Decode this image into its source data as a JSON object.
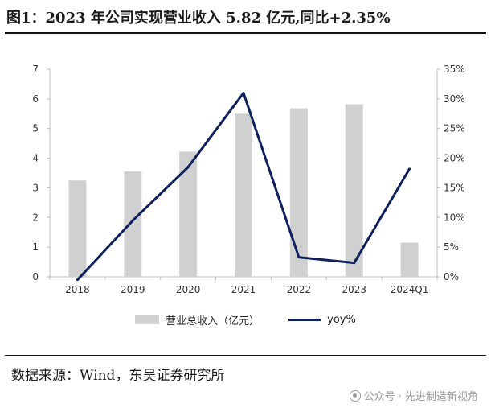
{
  "title": "图1：2023 年公司实现营业收入 5.82 亿元,同比+2.35%",
  "source": "数据来源：Wind，东吴证券研究所",
  "watermark": "公众号 · 先进制造新视角",
  "colors": {
    "bar": "#d0d0d0",
    "line": "#0d1f5c"
  },
  "chart_data": {
    "type": "bar",
    "categories": [
      "2018",
      "2019",
      "2020",
      "2021",
      "2022",
      "2023",
      "2024Q1"
    ],
    "series": [
      {
        "name": "营业总收入（亿元）",
        "type": "bar",
        "axis": "left",
        "values": [
          3.25,
          3.55,
          4.22,
          5.5,
          5.68,
          5.82,
          1.15
        ]
      },
      {
        "name": "yoy%",
        "type": "line",
        "axis": "right",
        "values": [
          -0.5,
          9.5,
          18.5,
          31.0,
          3.3,
          2.35,
          18.2
        ]
      }
    ],
    "ylim": [
      0,
      7
    ],
    "yticks": [
      "0",
      "1",
      "2",
      "3",
      "4",
      "5",
      "6",
      "7"
    ],
    "y2lim": [
      0,
      35
    ],
    "y2ticks": [
      "0%",
      "5%",
      "10%",
      "15%",
      "20%",
      "25%",
      "30%",
      "35%"
    ],
    "legend_position": "bottom",
    "grid": false
  }
}
